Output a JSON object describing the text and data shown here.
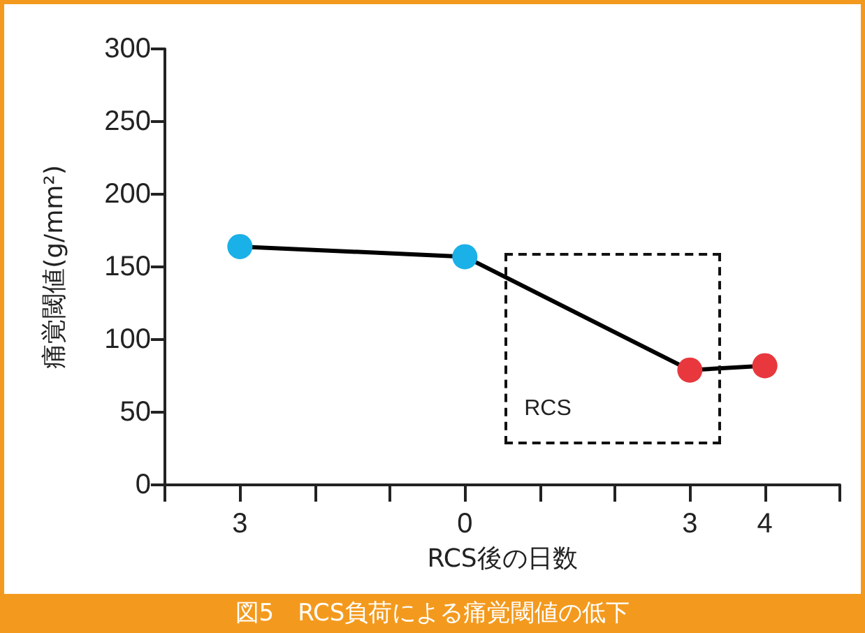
{
  "chart_data": {
    "type": "line",
    "title": "図5　RCS負荷による痛覚閾値の低下",
    "xlabel": "RCS後の日数",
    "ylabel": "痛覚閾値(g/mm²)",
    "categories": [
      null,
      "3",
      null,
      null,
      "0",
      null,
      null,
      "3",
      "4",
      null
    ],
    "values": [
      null,
      164,
      null,
      null,
      157,
      null,
      null,
      79,
      82,
      null
    ],
    "colors": [
      null,
      "#1ab0e8",
      null,
      null,
      "#1ab0e8",
      null,
      null,
      "#e8383d",
      "#e8383d",
      null
    ],
    "color": "#000000",
    "ylim": [
      0,
      300
    ],
    "yticks": [
      0,
      50,
      100,
      150,
      200,
      250,
      300
    ],
    "annotations": [
      "RCS"
    ],
    "marker": "circle",
    "line_style": "solid"
  }
}
